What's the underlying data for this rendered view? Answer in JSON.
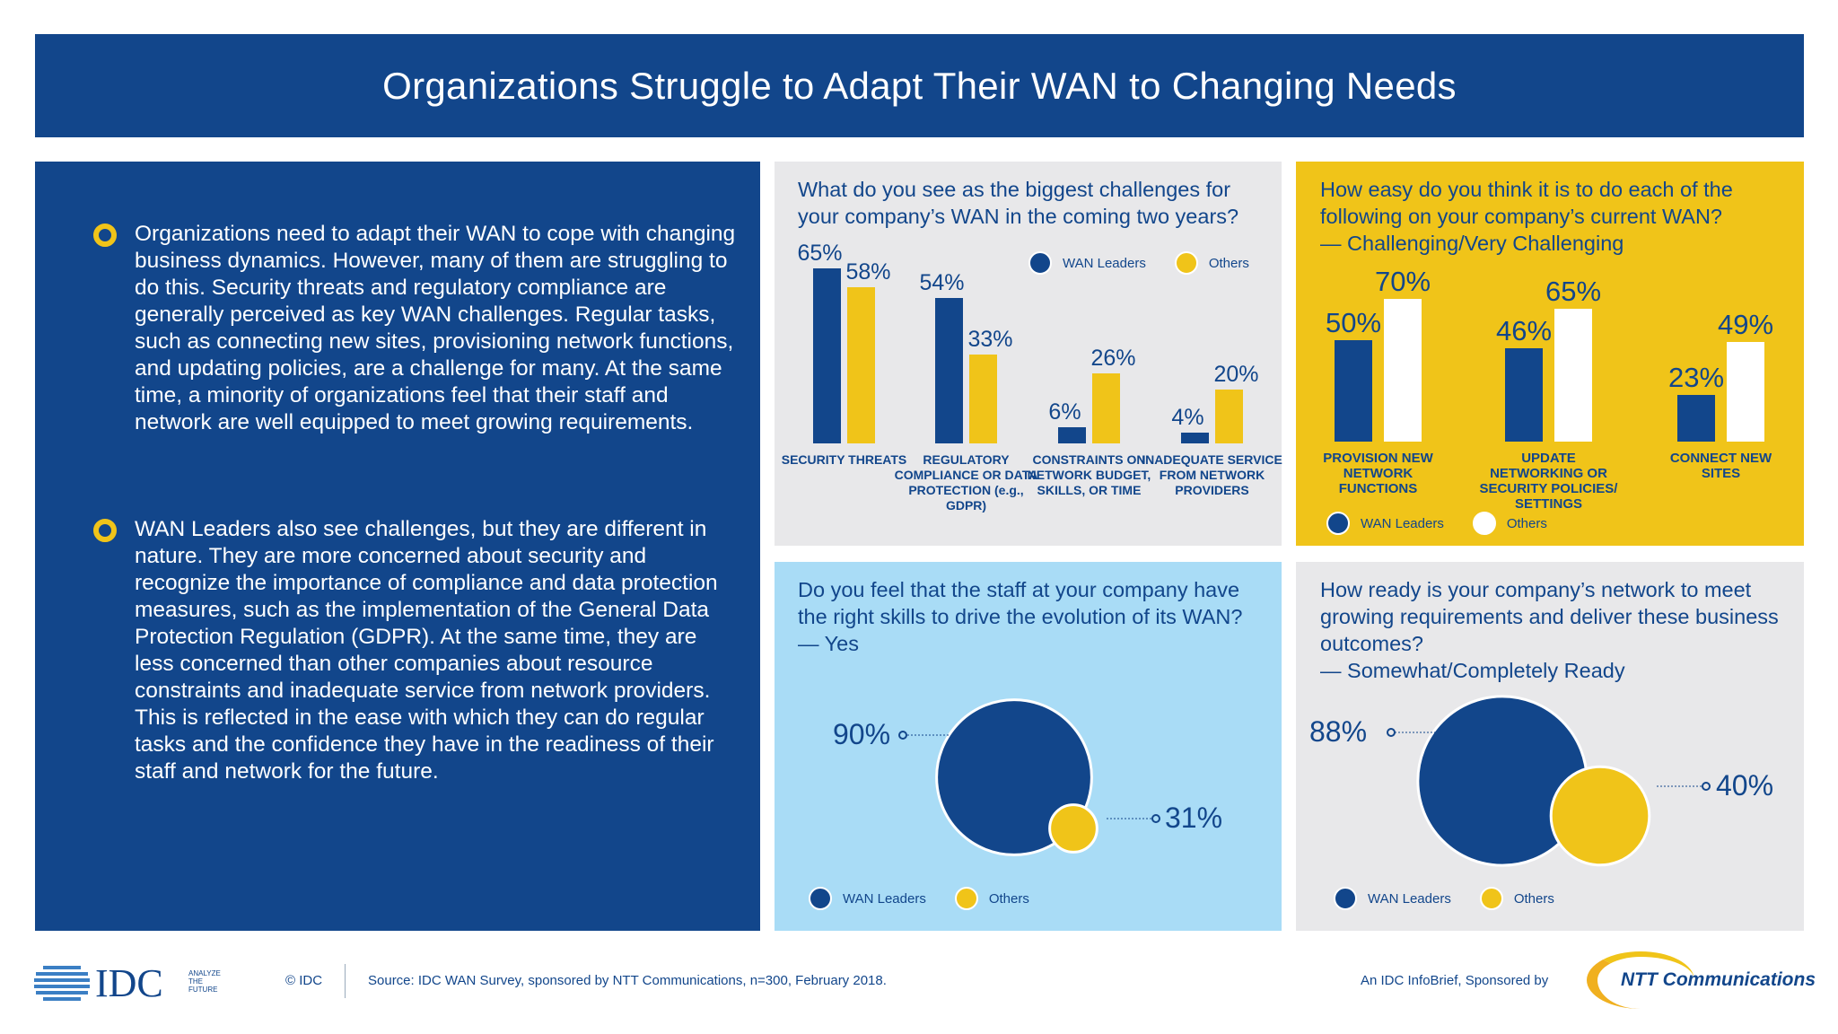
{
  "header": {
    "title": "Organizations Struggle to Adapt Their WAN to Changing Needs"
  },
  "left": {
    "paragraphs": [
      "Organizations need to adapt their WAN to cope with changing business dynamics. However, many of them are struggling to do this. Security threats and regulatory compliance are generally perceived as key WAN challenges. Regular tasks, such as connecting new sites, provisioning network functions, and updating policies, are a challenge for many. At the same time, a minority of organizations feel that their staff and network are well equipped to meet growing requirements.",
      "WAN Leaders also see challenges, but they are different in nature. They are more concerned about security and recognize the importance of compliance and data protection measures, such as the implementation of the General Data Protection Regulation (GDPR). At the same time, they are less concerned than other companies about resource constraints and inadequate service from network providers. This is reflected in the ease with which they can do regular tasks and the confidence they have in the readiness of their staff and network for the future."
    ]
  },
  "colors": {
    "navy": "#12468b",
    "yellow": "#f0c419",
    "white": "#ffffff",
    "light_blue": "#a9dcf6",
    "grey": "#e8e8ea"
  },
  "chart_data": [
    {
      "type": "bar",
      "title": "What do you see as the biggest challenges for your company’s WAN in the coming two years?",
      "categories": [
        "SECURITY THREATS",
        "REGULATORY COMPLIANCE OR DATA PROTECTION (e.g., GDPR)",
        "CONSTRAINTS ON NETWORK BUDGET, SKILLS, OR TIME",
        "INADEQUATE SERVICE FROM NETWORK PROVIDERS"
      ],
      "series": [
        {
          "name": "WAN Leaders",
          "color": "#12468b",
          "values": [
            65,
            54,
            6,
            4
          ]
        },
        {
          "name": "Others",
          "color": "#f0c419",
          "values": [
            58,
            33,
            26,
            20
          ]
        }
      ],
      "unit": "%",
      "legend": "top-right"
    },
    {
      "type": "bar",
      "title": "How easy do you think it is to do each of the following on your company’s current WAN?",
      "subtitle": "— Challenging/Very Challenging",
      "categories": [
        "PROVISION NEW NETWORK FUNCTIONS",
        "UPDATE NETWORKING OR SECURITY POLICIES/ SETTINGS",
        "CONNECT NEW SITES"
      ],
      "series": [
        {
          "name": "WAN Leaders",
          "color": "#12468b",
          "values": [
            50,
            46,
            23
          ]
        },
        {
          "name": "Others",
          "color": "#ffffff",
          "values": [
            70,
            65,
            49
          ]
        }
      ],
      "unit": "%",
      "legend": "bottom-left"
    },
    {
      "type": "bubble",
      "title": "Do you feel that the staff at your company have the right skills to drive the evolution of its WAN? — Yes",
      "series": [
        {
          "name": "WAN Leaders",
          "color": "#12468b",
          "value": 90
        },
        {
          "name": "Others",
          "color": "#f0c419",
          "value": 31
        }
      ],
      "unit": "%",
      "legend": "bottom-left"
    },
    {
      "type": "bubble",
      "title": "How ready is your company’s network to meet growing requirements and deliver these business outcomes?",
      "subtitle": "— Somewhat/Completely Ready",
      "series": [
        {
          "name": "WAN Leaders",
          "color": "#12468b",
          "value": 88
        },
        {
          "name": "Others",
          "color": "#f0c419",
          "value": 40
        }
      ],
      "unit": "%",
      "legend": "bottom-left"
    }
  ],
  "footer": {
    "idc_logo": "IDC",
    "idc_tagline": "ANALYZE THE FUTURE",
    "copyright": "© IDC",
    "source": "Source: IDC WAN Survey, sponsored by NTT Communications, n=300, February 2018.",
    "sponsor_text": "An IDC InfoBrief, Sponsored by",
    "ntt_logo": "NTT Communications"
  }
}
